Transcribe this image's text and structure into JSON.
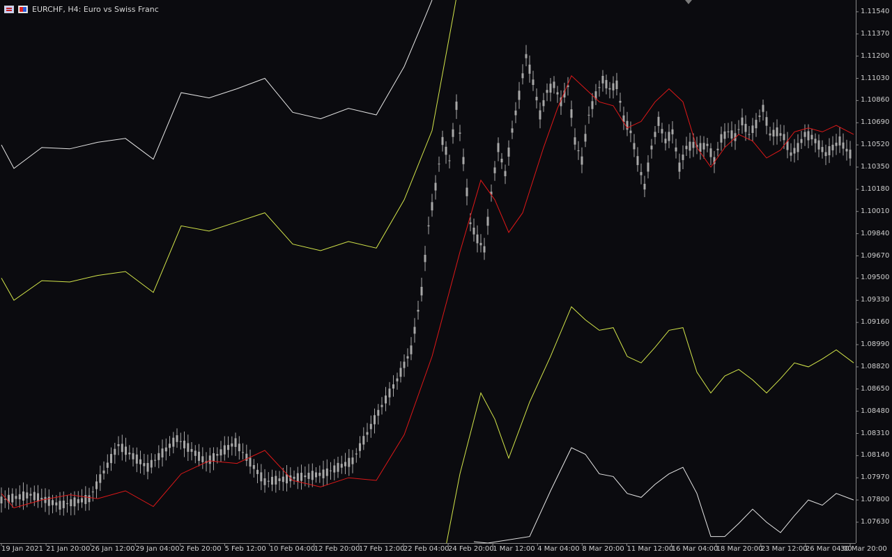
{
  "header": {
    "symbol_text": "EURCHF, H4:  Euro vs Swiss Franc",
    "icons": [
      "eur-flag-icon",
      "chf-flag-icon"
    ]
  },
  "colors": {
    "background": "#0b0b0f",
    "axis": "#8a8a8a",
    "candle": "#a8a8a8",
    "ma": "#e01818",
    "band_inner": "#d4e64a",
    "band_outer": "#e6e6e6"
  },
  "chart_data": {
    "type": "line",
    "title": "EURCHF, H4:  Euro vs Swiss Franc",
    "y_axis": {
      "position": "right",
      "ylim": [
        1.0747,
        1.1163
      ],
      "ticks": [
        "1.11540",
        "1.11370",
        "1.11200",
        "1.11030",
        "1.10860",
        "1.10690",
        "1.10520",
        "1.10350",
        "1.10180",
        "1.10010",
        "1.09840",
        "1.09670",
        "1.09500",
        "1.09330",
        "1.09160",
        "1.08990",
        "1.08820",
        "1.08650",
        "1.08480",
        "1.08310",
        "1.08140",
        "1.07970",
        "1.07800",
        "1.07630"
      ]
    },
    "x_axis": {
      "ticks": [
        "19 Jan 2021",
        "21 Jan 20:00",
        "26 Jan 12:00",
        "29 Jan 04:00",
        "2 Feb 20:00",
        "5 Feb 12:00",
        "10 Feb 04:00",
        "12 Feb 20:00",
        "17 Feb 12:00",
        "22 Feb 04:00",
        "24 Feb 20:00",
        "1 Mar 12:00",
        "4 Mar 04:00",
        "8 Mar 20:00",
        "11 Mar 12:00",
        "16 Mar 04:00",
        "18 Mar 20:00",
        "23 Mar 12:00",
        "26 Mar 04:00",
        "30 Mar 20:00"
      ]
    },
    "grid": false,
    "series": [
      {
        "kind": "candles",
        "x": [
          2,
          44,
          86,
          128,
          170,
          212,
          254,
          296,
          338,
          380,
          422,
          464,
          506,
          548,
          570,
          590,
          605,
          615,
          625,
          635,
          645,
          655,
          665,
          675,
          685,
          695,
          705,
          715,
          725,
          735,
          745,
          755,
          765,
          775,
          785,
          795,
          805,
          815,
          825,
          835,
          845,
          855,
          865,
          875,
          885,
          895,
          905,
          915,
          925,
          935,
          945,
          955,
          965,
          975,
          985,
          995,
          1005,
          1015,
          1025,
          1035,
          1045,
          1055,
          1065,
          1075,
          1085,
          1095,
          1105,
          1115,
          1125,
          1135,
          1145,
          1155,
          1165,
          1175,
          1185,
          1195,
          1205,
          1215,
          1225
        ],
        "y": [
          1.078,
          1.0784,
          1.0776,
          1.0781,
          1.0822,
          1.0805,
          1.0827,
          1.0809,
          1.0824,
          1.0794,
          1.0797,
          1.08,
          1.081,
          1.0852,
          1.0872,
          1.0895,
          1.094,
          1.099,
          1.102,
          1.1055,
          1.104,
          1.1082,
          1.104,
          1.0992,
          1.098,
          1.0972,
          1.1015,
          1.105,
          1.103,
          1.1063,
          1.109,
          1.112,
          1.11,
          1.1075,
          1.1093,
          1.1098,
          1.1085,
          1.1097,
          1.1055,
          1.104,
          1.1075,
          1.109,
          1.1102,
          1.1095,
          1.1098,
          1.1072,
          1.1062,
          1.104,
          1.102,
          1.105,
          1.107,
          1.1055,
          1.1062,
          1.1035,
          1.105,
          1.1052,
          1.105,
          1.1052,
          1.104,
          1.1057,
          1.1062,
          1.1058,
          1.107,
          1.106,
          1.1068,
          1.108,
          1.106,
          1.1062,
          1.1058,
          1.1045,
          1.105,
          1.106,
          1.1058,
          1.1052,
          1.1045,
          1.105,
          1.1055,
          1.1048,
          1.1042
        ]
      },
      {
        "kind": "moving-average",
        "x": [
          2,
          20,
          60,
          100,
          140,
          180,
          220,
          260,
          300,
          340,
          380,
          420,
          460,
          500,
          540,
          580,
          620,
          660,
          690,
          710,
          730,
          750,
          780,
          800,
          820,
          840,
          860,
          880,
          900,
          920,
          940,
          960,
          980,
          1000,
          1020,
          1040,
          1060,
          1080,
          1100,
          1120,
          1140,
          1160,
          1180,
          1200,
          1225
        ],
        "y": [
          1.0785,
          1.0774,
          1.078,
          1.0784,
          1.0781,
          1.0787,
          1.0775,
          1.08,
          1.081,
          1.0808,
          1.0818,
          1.0795,
          1.079,
          1.0797,
          1.0795,
          1.083,
          1.089,
          1.097,
          1.1025,
          1.101,
          1.0985,
          1.1,
          1.105,
          1.108,
          1.1105,
          1.1095,
          1.1085,
          1.1082,
          1.1065,
          1.107,
          1.1085,
          1.1095,
          1.1085,
          1.105,
          1.1035,
          1.105,
          1.106,
          1.1055,
          1.1042,
          1.1048,
          1.1062,
          1.1065,
          1.1062,
          1.1067,
          1.106
        ]
      },
      {
        "kind": "band-upper-inner",
        "x": [
          2,
          20,
          60,
          100,
          140,
          180,
          220,
          260,
          300,
          340,
          380,
          420,
          460,
          500,
          540,
          580,
          620,
          650,
          660
        ],
        "y": [
          1.095,
          1.0933,
          1.0948,
          1.0947,
          1.0952,
          1.0955,
          1.0939,
          1.099,
          1.0986,
          1.0993,
          1.1,
          1.0976,
          1.0971,
          1.0978,
          1.0973,
          1.101,
          1.1063,
          1.115,
          1.118
        ]
      },
      {
        "kind": "band-upper-outer",
        "x": [
          2,
          20,
          60,
          100,
          140,
          180,
          220,
          260,
          300,
          340,
          380,
          420,
          460,
          500,
          540,
          580,
          610,
          620
        ],
        "y": [
          1.1052,
          1.1034,
          1.105,
          1.1049,
          1.1054,
          1.1057,
          1.1041,
          1.1092,
          1.1088,
          1.1095,
          1.1103,
          1.1077,
          1.1072,
          1.108,
          1.1075,
          1.1112,
          1.115,
          1.1163
        ]
      },
      {
        "kind": "band-lower-inner",
        "x": [
          640,
          660,
          690,
          710,
          730,
          760,
          790,
          820,
          840,
          860,
          880,
          900,
          920,
          940,
          960,
          980,
          1000,
          1020,
          1040,
          1060,
          1080,
          1100,
          1120,
          1140,
          1160,
          1180,
          1200,
          1225
        ],
        "y": [
          1.0745,
          1.08,
          1.0862,
          1.0842,
          1.0812,
          1.0855,
          1.089,
          1.0928,
          1.0918,
          1.091,
          1.0912,
          1.089,
          1.0885,
          1.0897,
          1.091,
          1.0912,
          1.0878,
          1.0862,
          1.0875,
          1.088,
          1.0872,
          1.0862,
          1.0873,
          1.0885,
          1.0882,
          1.0888,
          1.0895,
          1.0885
        ]
      },
      {
        "kind": "band-lower-outer",
        "x": [
          680,
          700,
          760,
          790,
          820,
          840,
          860,
          880,
          900,
          920,
          940,
          960,
          980,
          1000,
          1020,
          1040,
          1060,
          1080,
          1100,
          1120,
          1140,
          1160,
          1180,
          1200,
          1225
        ],
        "y": [
          1.0748,
          1.0747,
          1.0752,
          1.0787,
          1.082,
          1.0815,
          1.08,
          1.0798,
          1.0785,
          1.0782,
          1.0792,
          1.08,
          1.0805,
          1.0785,
          1.0752,
          1.0752,
          1.0762,
          1.0773,
          1.0763,
          1.0755,
          1.0768,
          1.078,
          1.0776,
          1.0785,
          1.078
        ]
      }
    ]
  }
}
